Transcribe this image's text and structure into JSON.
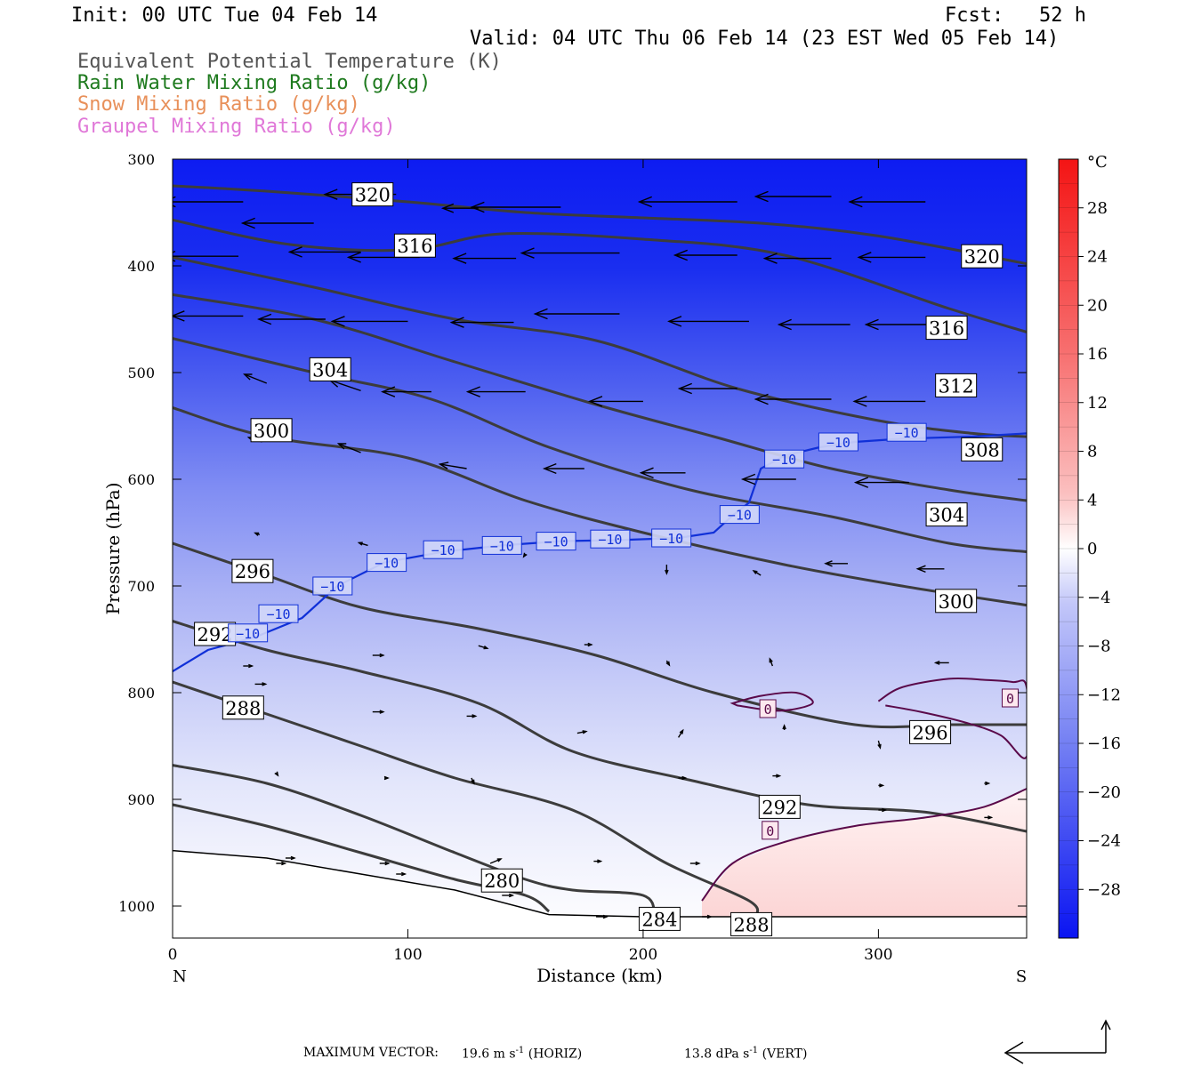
{
  "header": {
    "init": "Init: 00 UTC Tue 04 Feb 14",
    "fcst": "Fcst:   52 h",
    "valid": "Valid: 04 UTC Thu 06 Feb 14 (23 EST Wed 05 Feb 14)",
    "fields": [
      {
        "label": "Equivalent Potential Temperature (K)",
        "color": "#555555"
      },
      {
        "label": "Rain Water Mixing Ratio (g/kg)",
        "color": "#1e7a1e"
      },
      {
        "label": "Snow Mixing Ratio (g/kg)",
        "color": "#e8905a"
      },
      {
        "label": "Graupel Mixing Ratio (g/kg)",
        "color": "#e078d8"
      }
    ]
  },
  "chart_data": {
    "type": "contour",
    "xlabel": "Distance (km)",
    "ylabel": "Pressure (hPa)",
    "xlim": [
      0,
      363
    ],
    "ylim": [
      1030,
      300
    ],
    "x_ticks": [
      0,
      100,
      200,
      300
    ],
    "y_ticks": [
      300,
      400,
      500,
      600,
      700,
      800,
      900,
      1000
    ],
    "x_end_labels": {
      "left": "N",
      "right": "S"
    },
    "colorbar": {
      "unit": "°C",
      "ticks": [
        28,
        24,
        20,
        16,
        12,
        8,
        4,
        0,
        -4,
        -8,
        -12,
        -16,
        -20,
        -24,
        -28
      ],
      "range": [
        -32,
        32
      ]
    },
    "theta_e_contours": [
      {
        "value": 320,
        "points": [
          [
            0,
            325
          ],
          [
            40,
            330
          ],
          [
            100,
            340
          ],
          [
            150,
            350
          ],
          [
            200,
            355
          ],
          [
            250,
            360
          ],
          [
            300,
            372
          ],
          [
            363,
            398
          ]
        ]
      },
      {
        "value": 316,
        "points": [
          [
            0,
            357
          ],
          [
            50,
            380
          ],
          [
            100,
            385
          ],
          [
            140,
            370
          ],
          [
            200,
            375
          ],
          [
            260,
            390
          ],
          [
            330,
            440
          ],
          [
            363,
            462
          ]
        ]
      },
      {
        "value": 312,
        "points": [
          [
            0,
            392
          ],
          [
            60,
            420
          ],
          [
            120,
            450
          ],
          [
            180,
            470
          ],
          [
            240,
            515
          ],
          [
            300,
            545
          ],
          [
            340,
            557
          ],
          [
            363,
            560
          ]
        ]
      },
      {
        "value": 308,
        "points": [
          [
            0,
            427
          ],
          [
            60,
            450
          ],
          [
            120,
            490
          ],
          [
            180,
            530
          ],
          [
            230,
            560
          ],
          [
            280,
            590
          ],
          [
            330,
            610
          ],
          [
            363,
            620
          ]
        ]
      },
      {
        "value": 304,
        "points": [
          [
            0,
            468
          ],
          [
            60,
            500
          ],
          [
            110,
            525
          ],
          [
            160,
            570
          ],
          [
            220,
            610
          ],
          [
            280,
            635
          ],
          [
            330,
            660
          ],
          [
            363,
            668
          ]
        ]
      },
      {
        "value": 300,
        "points": [
          [
            0,
            533
          ],
          [
            40,
            560
          ],
          [
            100,
            580
          ],
          [
            150,
            620
          ],
          [
            200,
            650
          ],
          [
            260,
            680
          ],
          [
            310,
            700
          ],
          [
            363,
            718
          ]
        ]
      },
      {
        "value": 296,
        "points": [
          [
            0,
            660
          ],
          [
            40,
            690
          ],
          [
            80,
            720
          ],
          [
            130,
            740
          ],
          [
            180,
            765
          ],
          [
            230,
            800
          ],
          [
            290,
            830
          ],
          [
            330,
            830
          ],
          [
            363,
            830
          ]
        ]
      },
      {
        "value": 292,
        "points": [
          [
            0,
            733
          ],
          [
            40,
            760
          ],
          [
            80,
            780
          ],
          [
            130,
            810
          ],
          [
            170,
            855
          ],
          [
            220,
            882
          ],
          [
            270,
            905
          ],
          [
            320,
            912
          ],
          [
            363,
            930
          ]
        ]
      },
      {
        "value": 288,
        "points": [
          [
            0,
            790
          ],
          [
            40,
            820
          ],
          [
            80,
            850
          ],
          [
            120,
            880
          ],
          [
            170,
            910
          ],
          [
            210,
            960
          ],
          [
            245,
            995
          ],
          [
            248,
            1010
          ]
        ]
      },
      {
        "value": 284,
        "points": [
          [
            0,
            868
          ],
          [
            40,
            885
          ],
          [
            80,
            915
          ],
          [
            120,
            950
          ],
          [
            150,
            975
          ],
          [
            170,
            985
          ],
          [
            200,
            990
          ],
          [
            205,
            1010
          ]
        ]
      },
      {
        "value": 280,
        "points": [
          [
            0,
            905
          ],
          [
            40,
            925
          ],
          [
            80,
            950
          ],
          [
            120,
            975
          ],
          [
            150,
            990
          ],
          [
            160,
            1005
          ]
        ]
      }
    ],
    "theta_e_labels": [
      {
        "value": "320",
        "x": 85,
        "p": 333
      },
      {
        "value": "316",
        "x": 103,
        "p": 381
      },
      {
        "value": "304",
        "x": 67,
        "p": 497
      },
      {
        "value": "300",
        "x": 42,
        "p": 554
      },
      {
        "value": "296",
        "x": 34,
        "p": 686
      },
      {
        "value": "292",
        "x": 18,
        "p": 745
      },
      {
        "value": "288",
        "x": 30,
        "p": 814
      },
      {
        "value": "280",
        "x": 140,
        "p": 976
      },
      {
        "value": "284",
        "x": 207,
        "p": 1012
      },
      {
        "value": "288",
        "x": 246,
        "p": 1017
      },
      {
        "value": "292",
        "x": 258,
        "p": 907
      },
      {
        "value": "296",
        "x": 322,
        "p": 837
      },
      {
        "value": "300",
        "x": 333,
        "p": 714
      },
      {
        "value": "304",
        "x": 329,
        "p": 633
      },
      {
        "value": "308",
        "x": 344,
        "p": 572
      },
      {
        "value": "312",
        "x": 333,
        "p": 512
      },
      {
        "value": "316",
        "x": 329,
        "p": 458
      },
      {
        "value": "320",
        "x": 344,
        "p": 391
      }
    ],
    "isotherm_minus10": {
      "value": "-10",
      "points": [
        [
          0,
          780
        ],
        [
          15,
          760
        ],
        [
          35,
          748
        ],
        [
          55,
          730
        ],
        [
          70,
          700
        ],
        [
          90,
          678
        ],
        [
          115,
          668
        ],
        [
          140,
          662
        ],
        [
          165,
          658
        ],
        [
          190,
          657
        ],
        [
          215,
          655
        ],
        [
          230,
          650
        ],
        [
          238,
          634
        ],
        [
          245,
          622
        ],
        [
          250,
          590
        ],
        [
          260,
          578
        ],
        [
          275,
          570
        ],
        [
          290,
          565
        ],
        [
          310,
          562
        ],
        [
          340,
          560
        ],
        [
          363,
          557
        ]
      ],
      "label_positions": [
        [
          32,
          744
        ],
        [
          45,
          726
        ],
        [
          68,
          700
        ],
        [
          91,
          678
        ],
        [
          115,
          666
        ],
        [
          140,
          662
        ],
        [
          163,
          658
        ],
        [
          186,
          656
        ],
        [
          212,
          655
        ],
        [
          241,
          633
        ],
        [
          260,
          581
        ],
        [
          283,
          565
        ],
        [
          312,
          556
        ]
      ]
    },
    "isotherm_zero": {
      "value": "0",
      "closed_small": [
        [
          238,
          810
        ],
        [
          250,
          803
        ],
        [
          265,
          800
        ],
        [
          272,
          810
        ],
        [
          258,
          817
        ],
        [
          240,
          812
        ]
      ],
      "right_top": [
        [
          300,
          808
        ],
        [
          310,
          795
        ],
        [
          330,
          787
        ],
        [
          345,
          788
        ],
        [
          357,
          790
        ],
        [
          363,
          795
        ],
        [
          363,
          860
        ],
        [
          352,
          840
        ],
        [
          337,
          828
        ],
        [
          318,
          818
        ],
        [
          303,
          812
        ]
      ],
      "bottom": [
        [
          225,
          995
        ],
        [
          238,
          960
        ],
        [
          260,
          940
        ],
        [
          290,
          925
        ],
        [
          320,
          917
        ],
        [
          345,
          907
        ],
        [
          363,
          890
        ]
      ],
      "label_positions": [
        [
          253,
          815
        ],
        [
          356,
          805
        ],
        [
          254,
          929
        ]
      ]
    },
    "wind_vectors": [
      {
        "x": 95,
        "p": 333,
        "u": -80,
        "v": 0
      },
      {
        "x": 130,
        "p": 346,
        "u": -40,
        "v": 0
      },
      {
        "x": 165,
        "p": 345,
        "u": -100,
        "v": 0
      },
      {
        "x": 240,
        "p": 340,
        "u": -110,
        "v": 0
      },
      {
        "x": 280,
        "p": 335,
        "u": -85,
        "v": 0
      },
      {
        "x": 320,
        "p": 340,
        "u": -85,
        "v": 0
      },
      {
        "x": 30,
        "p": 340,
        "u": -90,
        "v": 0
      },
      {
        "x": 60,
        "p": 360,
        "u": -80,
        "v": 0
      },
      {
        "x": 80,
        "p": 387,
        "u": -80,
        "v": 0
      },
      {
        "x": 105,
        "p": 392,
        "u": -80,
        "v": 0
      },
      {
        "x": 146,
        "p": 393,
        "u": -70,
        "v": 0
      },
      {
        "x": 190,
        "p": 388,
        "u": -110,
        "v": 0
      },
      {
        "x": 240,
        "p": 390,
        "u": -70,
        "v": 0
      },
      {
        "x": 280,
        "p": 393,
        "u": -75,
        "v": 0
      },
      {
        "x": 320,
        "p": 392,
        "u": -75,
        "v": 0
      },
      {
        "x": 28,
        "p": 391,
        "u": -85,
        "v": 0
      },
      {
        "x": 30,
        "p": 447,
        "u": -80,
        "v": 0
      },
      {
        "x": 65,
        "p": 450,
        "u": -75,
        "v": 0
      },
      {
        "x": 100,
        "p": 452,
        "u": -85,
        "v": 0
      },
      {
        "x": 145,
        "p": 453,
        "u": -70,
        "v": 0
      },
      {
        "x": 190,
        "p": 445,
        "u": -95,
        "v": 0
      },
      {
        "x": 245,
        "p": 452,
        "u": -90,
        "v": 0
      },
      {
        "x": 288,
        "p": 455,
        "u": -80,
        "v": 0
      },
      {
        "x": 325,
        "p": 455,
        "u": -80,
        "v": 0
      },
      {
        "x": 40,
        "p": 510,
        "u": -25,
        "v": -10
      },
      {
        "x": 80,
        "p": 517,
        "u": -35,
        "v": -12
      },
      {
        "x": 110,
        "p": 518,
        "u": -55,
        "v": 0
      },
      {
        "x": 150,
        "p": 518,
        "u": -65,
        "v": 0
      },
      {
        "x": 200,
        "p": 527,
        "u": -60,
        "v": 0
      },
      {
        "x": 240,
        "p": 515,
        "u": -65,
        "v": 0
      },
      {
        "x": 280,
        "p": 525,
        "u": -85,
        "v": 0
      },
      {
        "x": 320,
        "p": 527,
        "u": -80,
        "v": 0
      },
      {
        "x": 38,
        "p": 565,
        "u": -15,
        "v": -5
      },
      {
        "x": 80,
        "p": 575,
        "u": -25,
        "v": -10
      },
      {
        "x": 125,
        "p": 590,
        "u": -30,
        "v": -5
      },
      {
        "x": 175,
        "p": 590,
        "u": -45,
        "v": 0
      },
      {
        "x": 218,
        "p": 594,
        "u": -50,
        "v": 0
      },
      {
        "x": 265,
        "p": 600,
        "u": -60,
        "v": 0
      },
      {
        "x": 313,
        "p": 603,
        "u": -60,
        "v": 0
      },
      {
        "x": 37,
        "p": 652,
        "u": -5,
        "v": -2
      },
      {
        "x": 83,
        "p": 662,
        "u": -10,
        "v": -3
      },
      {
        "x": 150,
        "p": 670,
        "u": -2,
        "v": 3
      },
      {
        "x": 210,
        "p": 680,
        "u": 0,
        "v": 10
      },
      {
        "x": 250,
        "p": 690,
        "u": -8,
        "v": -5
      },
      {
        "x": 287,
        "p": 679,
        "u": -25,
        "v": 0
      },
      {
        "x": 328,
        "p": 684,
        "u": -30,
        "v": 0
      },
      {
        "x": 30,
        "p": 775,
        "u": 10,
        "v": 0
      },
      {
        "x": 85,
        "p": 765,
        "u": 12,
        "v": 0
      },
      {
        "x": 130,
        "p": 756,
        "u": 10,
        "v": 3
      },
      {
        "x": 175,
        "p": 755,
        "u": 8,
        "v": 0
      },
      {
        "x": 210,
        "p": 770,
        "u": 3,
        "v": 5
      },
      {
        "x": 255,
        "p": 775,
        "u": -3,
        "v": -8
      },
      {
        "x": 330,
        "p": 772,
        "u": -15,
        "v": 0
      },
      {
        "x": 35,
        "p": 792,
        "u": 12,
        "v": 0
      },
      {
        "x": 85,
        "p": 818,
        "u": 12,
        "v": 0
      },
      {
        "x": 125,
        "p": 822,
        "u": 10,
        "v": 0
      },
      {
        "x": 172,
        "p": 838,
        "u": 10,
        "v": -2
      },
      {
        "x": 215,
        "p": 842,
        "u": 5,
        "v": -8
      },
      {
        "x": 260,
        "p": 835,
        "u": 0,
        "v": -5
      },
      {
        "x": 300,
        "p": 845,
        "u": 2,
        "v": 8
      },
      {
        "x": 44,
        "p": 925,
        "u": 0,
        "v": 0
      },
      {
        "x": 44,
        "p": 960,
        "u": 10,
        "v": 0
      },
      {
        "x": 88,
        "p": 960,
        "u": 10,
        "v": 0
      },
      {
        "x": 135,
        "p": 960,
        "u": 12,
        "v": -5
      },
      {
        "x": 179,
        "p": 958,
        "u": 8,
        "v": 0
      },
      {
        "x": 220,
        "p": 960,
        "u": 10,
        "v": 0
      },
      {
        "x": 258,
        "p": 910,
        "u": 8,
        "v": 0
      },
      {
        "x": 300,
        "p": 910,
        "u": 8,
        "v": 0
      },
      {
        "x": 345,
        "p": 917,
        "u": 8,
        "v": 0
      },
      {
        "x": 44,
        "p": 875,
        "u": 2,
        "v": 3
      },
      {
        "x": 90,
        "p": 880,
        "u": 4,
        "v": 0
      },
      {
        "x": 127,
        "p": 880,
        "u": 3,
        "v": 6
      },
      {
        "x": 167,
        "p": 880,
        "u": 0,
        "v": 0
      },
      {
        "x": 215,
        "p": 880,
        "u": 8,
        "v": 0
      },
      {
        "x": 255,
        "p": 878,
        "u": 8,
        "v": 0
      },
      {
        "x": 300,
        "p": 887,
        "u": 5,
        "v": 0
      },
      {
        "x": 345,
        "p": 885,
        "u": 5,
        "v": 0
      },
      {
        "x": 48,
        "p": 955,
        "u": 10,
        "v": 0
      },
      {
        "x": 95,
        "p": 970,
        "u": 10,
        "v": 0
      },
      {
        "x": 140,
        "p": 990,
        "u": 12,
        "v": 0
      },
      {
        "x": 180,
        "p": 1010,
        "u": 12,
        "v": 0
      },
      {
        "x": 225,
        "p": 1010,
        "u": 10,
        "v": 0
      }
    ],
    "surface_line": [
      [
        0,
        948
      ],
      [
        40,
        955
      ],
      [
        80,
        970
      ],
      [
        120,
        985
      ],
      [
        160,
        1008
      ],
      [
        200,
        1010
      ],
      [
        300,
        1010
      ],
      [
        363,
        1010
      ]
    ],
    "max_vector": {
      "label": "MAXIMUM VECTOR:",
      "horiz_value": "19.6",
      "horiz_unit": "m s",
      "horiz_exp": "-1",
      "horiz_tag": "(HORIZ)",
      "vert_value": "13.8",
      "vert_unit": "dPa s",
      "vert_exp": "-1",
      "vert_tag": "(VERT)"
    }
  }
}
